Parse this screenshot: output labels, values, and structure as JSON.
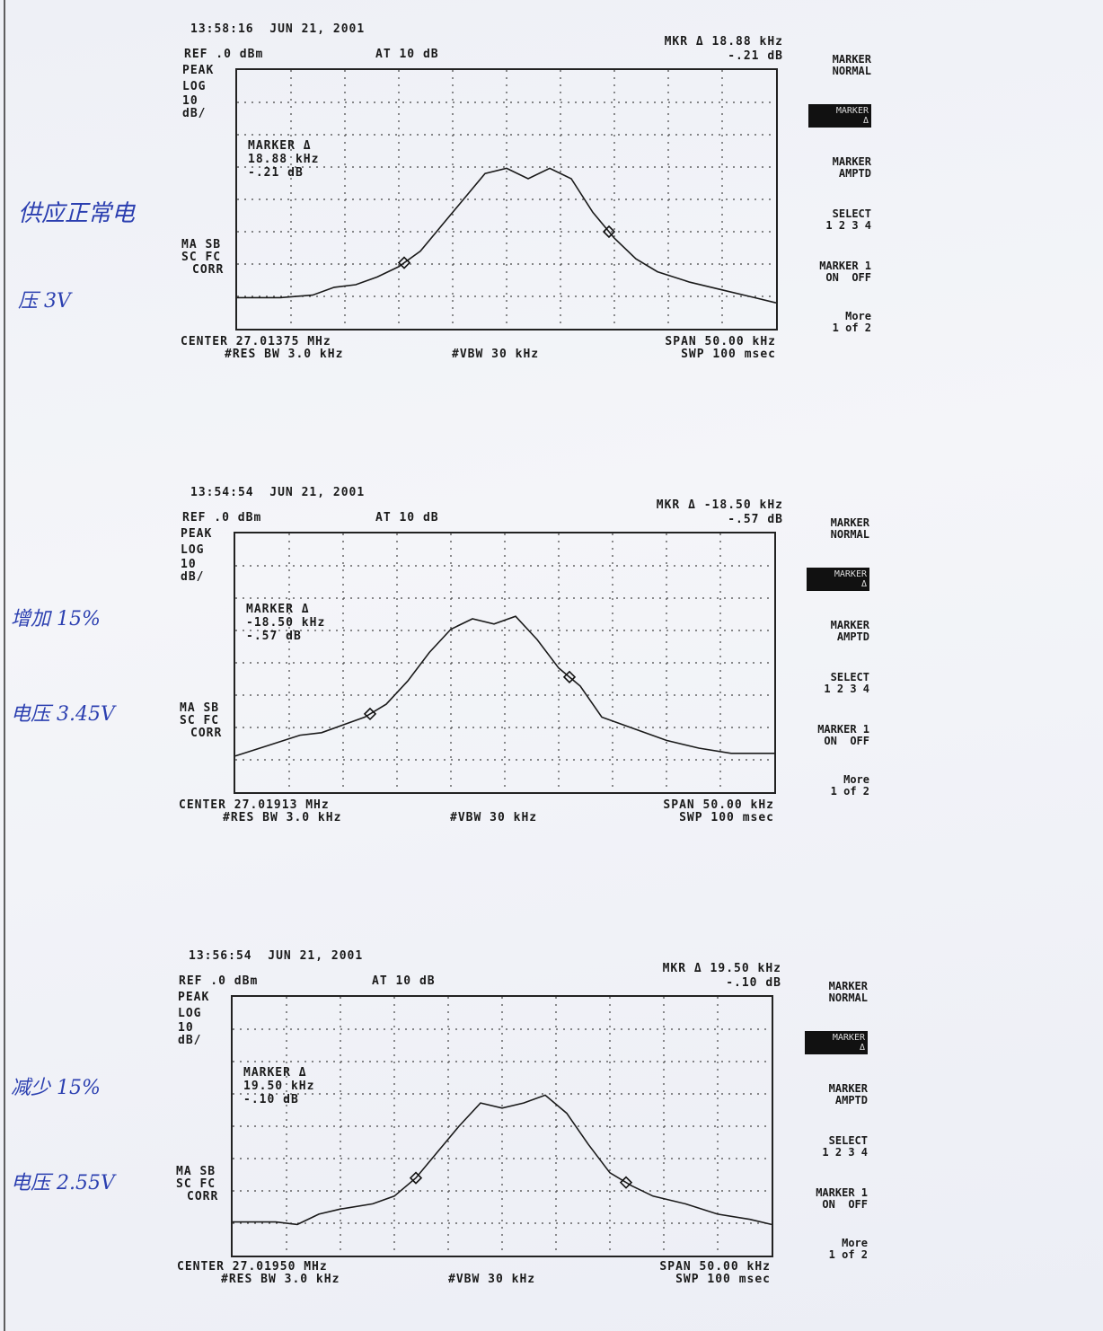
{
  "annotations": [
    {
      "line1": "供应正常电",
      "line2": "压 3V"
    },
    {
      "line1": "增加 15%",
      "line2": "电压 3.45V"
    },
    {
      "line1": "减少 15%",
      "line2": "电压 2.55V"
    }
  ],
  "softkeys": {
    "marker_normal_1": "MARKER",
    "marker_normal_2": "NORMAL",
    "marker_delta": "MARKER\nΔ",
    "marker_amptd_1": "MARKER",
    "marker_amptd_2": "AMPTD",
    "select_1": "SELECT",
    "select_2": "1 2 3 4",
    "marker1_1": "MARKER 1",
    "marker1_2": "ON  OFF",
    "more_1": "More",
    "more_2": "1 of 2"
  },
  "common": {
    "ref": "REF .0 dBm",
    "at": "AT 10 dB",
    "peak": "PEAK",
    "log": "LOG",
    "ten": "10",
    "dbdiv": "dB/",
    "masb": "MA SB",
    "scfc": "SC FC",
    "corr": "CORR",
    "res": "#RES BW 3.0 kHz",
    "vbw": "#VBW 30 kHz",
    "span": "SPAN 50.00 kHz",
    "swp": "SWP 100 msec"
  },
  "plots": [
    {
      "timestamp": "13:58:16  JUN 21, 2001",
      "mkr_line1": "MKR Δ 18.88 kHz",
      "mkr_line2": "-.21 dB",
      "box_line1": "MARKER Δ",
      "box_line2": "18.88 kHz",
      "box_line3": "-.21 dB",
      "center": "CENTER 27.01375 MHz"
    },
    {
      "timestamp": "13:54:54  JUN 21, 2001",
      "mkr_line1": "MKR Δ -18.50 kHz",
      "mkr_line2": "-.57 dB",
      "box_line1": "MARKER Δ",
      "box_line2": "-18.50 kHz",
      "box_line3": "-.57 dB",
      "center": "CENTER 27.01913 MHz"
    },
    {
      "timestamp": "13:56:54  JUN 21, 2001",
      "mkr_line1": "MKR Δ 19.50 kHz",
      "mkr_line2": "-.10 dB",
      "box_line1": "MARKER Δ",
      "box_line2": "19.50 kHz",
      "box_line3": "-.10 dB",
      "center": "CENTER 27.01950 MHz"
    }
  ],
  "chart_data": [
    {
      "type": "line",
      "xlim": [
        -25,
        25
      ],
      "ylim": [
        -100,
        0
      ],
      "grid": true,
      "series": [
        {
          "x": [
            -25,
            -21,
            -18,
            -16,
            -14,
            -12,
            -10,
            -8,
            -6,
            -4,
            -2,
            0,
            2,
            4,
            6,
            8,
            10,
            12,
            14,
            17,
            20,
            23,
            25
          ],
          "values": [
            -88,
            -88,
            -87,
            -84,
            -83,
            -80,
            -76,
            -70,
            -60,
            -50,
            -40,
            -38,
            -42,
            -38,
            -42,
            -55,
            -65,
            -73,
            -78,
            -82,
            -85,
            -88,
            -90
          ]
        }
      ],
      "markers_x": [
        -9.5,
        9.5
      ]
    },
    {
      "type": "line",
      "xlim": [
        -25,
        25
      ],
      "ylim": [
        -100,
        0
      ],
      "grid": true,
      "series": [
        {
          "x": [
            -25,
            -22,
            -19,
            -17,
            -15,
            -13,
            -11,
            -9,
            -7,
            -5,
            -3,
            -1,
            1,
            3,
            5,
            7,
            9,
            11,
            13,
            15,
            18,
            21,
            25
          ],
          "values": [
            -86,
            -82,
            -78,
            -77,
            -74,
            -71,
            -66,
            -57,
            -46,
            -37,
            -33,
            -35,
            -32,
            -41,
            -52,
            -59,
            -71,
            -74,
            -77,
            -80,
            -83,
            -85,
            -85
          ]
        }
      ],
      "markers_x": [
        -12.5,
        6
      ]
    },
    {
      "type": "line",
      "xlim": [
        -25,
        25
      ],
      "ylim": [
        -100,
        0
      ],
      "grid": true,
      "series": [
        {
          "x": [
            -25,
            -21,
            -19,
            -17,
            -15,
            -12,
            -10,
            -8,
            -6,
            -4,
            -2,
            0,
            2,
            4,
            6,
            8,
            10,
            12,
            14,
            17,
            20,
            23,
            25
          ],
          "values": [
            -87,
            -87,
            -88,
            -84,
            -82,
            -80,
            -77,
            -70,
            -60,
            -50,
            -41,
            -43,
            -41,
            -38,
            -45,
            -57,
            -68,
            -73,
            -77,
            -80,
            -84,
            -86,
            -88
          ]
        }
      ],
      "markers_x": [
        -8,
        11.5
      ]
    }
  ]
}
